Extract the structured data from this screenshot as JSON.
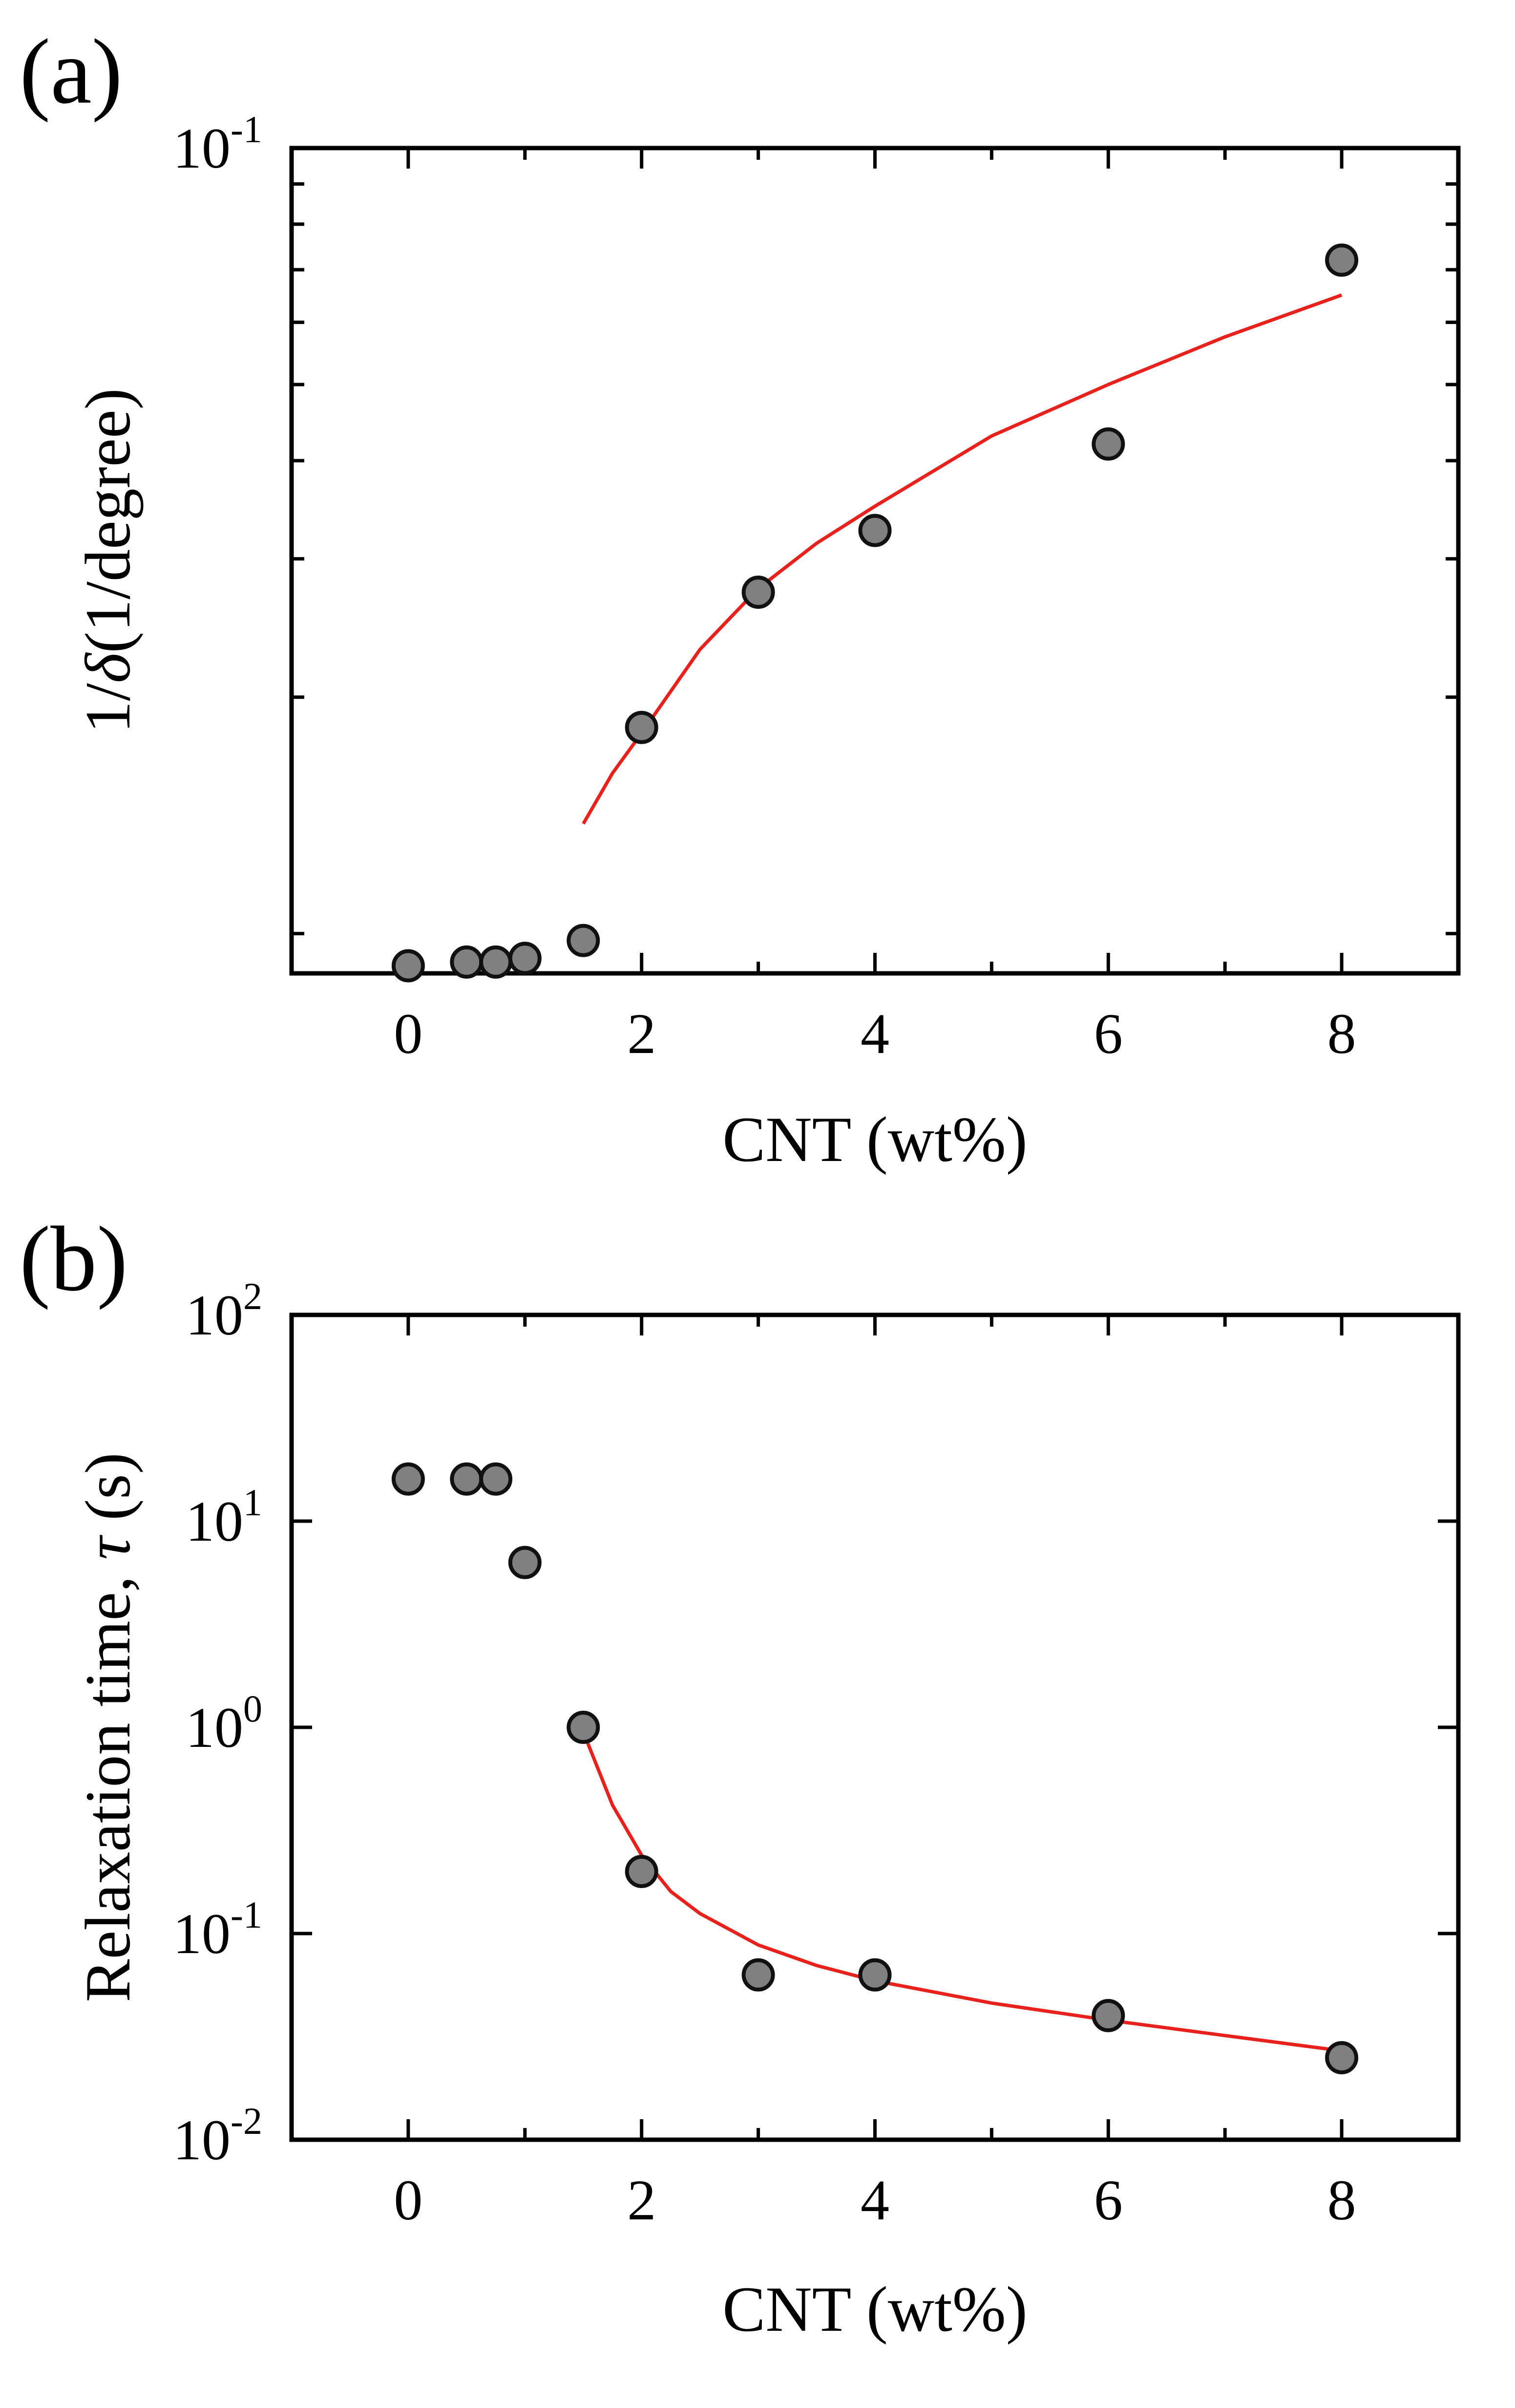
{
  "chart_data": [
    {
      "panel": "(a)",
      "type": "scatter",
      "title": "",
      "xlabel": "CNT (wt%)",
      "ylabel": {
        "prefix": "1/",
        "symbol": "δ",
        "suffix": "(1/degree)"
      },
      "yscale": "log",
      "xlim": [
        -1,
        9
      ],
      "ylim": [
        0.0089,
        0.1
      ],
      "x_ticks": [
        0,
        2,
        4,
        6,
        8
      ],
      "y_tick_labels": [
        {
          "value": 0.1,
          "base": "10",
          "exp": "-1"
        }
      ],
      "y_minor_ticks": [
        0.09,
        0.08,
        0.07,
        0.06,
        0.05,
        0.04,
        0.03,
        0.02,
        0.01
      ],
      "series": [
        {
          "name": "data",
          "marker": "circle",
          "color": "#808080",
          "x": [
            0,
            0.5,
            0.75,
            1,
            1.5,
            2,
            3,
            4,
            6,
            8
          ],
          "y": [
            0.0091,
            0.0092,
            0.0092,
            0.0093,
            0.0098,
            0.0183,
            0.0272,
            0.0326,
            0.042,
            0.072
          ]
        },
        {
          "name": "fit",
          "type": "line",
          "color": "#e8211c",
          "x": [
            1.5,
            1.75,
            2,
            2.5,
            3,
            3.5,
            4,
            5,
            6,
            7,
            8
          ],
          "y": [
            0.0138,
            0.016,
            0.018,
            0.023,
            0.0275,
            0.0314,
            0.035,
            0.043,
            0.05,
            0.0575,
            0.065
          ]
        }
      ]
    },
    {
      "panel": "(b)",
      "type": "scatter",
      "title": "",
      "xlabel": "CNT (wt%)",
      "ylabel": {
        "prefix": "Relaxation time, ",
        "symbol": "τ",
        "suffix": " (s)"
      },
      "yscale": "log",
      "xlim": [
        -1,
        9
      ],
      "ylim": [
        0.01,
        100
      ],
      "x_ticks": [
        0,
        2,
        4,
        6,
        8
      ],
      "y_tick_labels": [
        {
          "value": 100,
          "base": "10",
          "exp": "2"
        },
        {
          "value": 10,
          "base": "10",
          "exp": "1"
        },
        {
          "value": 1,
          "base": "10",
          "exp": "0"
        },
        {
          "value": 0.1,
          "base": "10",
          "exp": "-1"
        },
        {
          "value": 0.01,
          "base": "10",
          "exp": "-2"
        }
      ],
      "series": [
        {
          "name": "data",
          "marker": "circle",
          "color": "#808080",
          "x": [
            0,
            0.5,
            0.75,
            1,
            1.5,
            2,
            3,
            4,
            6,
            8
          ],
          "y": [
            16,
            16,
            16,
            6.3,
            1.0,
            0.2,
            0.063,
            0.063,
            0.04,
            0.025
          ]
        },
        {
          "name": "fit",
          "type": "line",
          "color": "#e8211c",
          "x": [
            1.5,
            1.75,
            2,
            2.25,
            2.5,
            3,
            3.5,
            4,
            5,
            6,
            7,
            8
          ],
          "y": [
            0.95,
            0.42,
            0.24,
            0.16,
            0.125,
            0.088,
            0.07,
            0.059,
            0.046,
            0.038,
            0.032,
            0.027
          ]
        }
      ]
    }
  ]
}
